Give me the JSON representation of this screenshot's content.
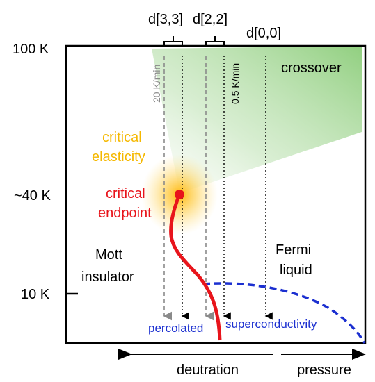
{
  "y_labels": {
    "k100": "100 K",
    "k40": "~40 K",
    "k10": "10 K"
  },
  "sample_labels": {
    "d33": "d[3,3]",
    "d22": "d[2,2]",
    "d00": "d[0,0]"
  },
  "rates": {
    "fast": "20 K/min",
    "slow": "0.5 K/min"
  },
  "regions": {
    "crossover": "crossover",
    "critical_elasticity": [
      "critical",
      "elasticity"
    ],
    "critical_endpoint": [
      "critical",
      "endpoint"
    ],
    "mott": [
      "Mott",
      "insulator"
    ],
    "fermi": [
      "Fermi",
      "liquid"
    ],
    "percolated": "percolated",
    "superconductivity": "superconductivity"
  },
  "axis_arrows": {
    "deutration": "deutration",
    "pressure": "pressure"
  },
  "colors": {
    "critical_elasticity": "#f5b800",
    "critical_endpoint": "#e8141b",
    "superconductivity": "#1b2fd0",
    "crossover_fill": "#7dc86a",
    "fast_line": "#8a8a8a",
    "slow_line": "#000000"
  }
}
